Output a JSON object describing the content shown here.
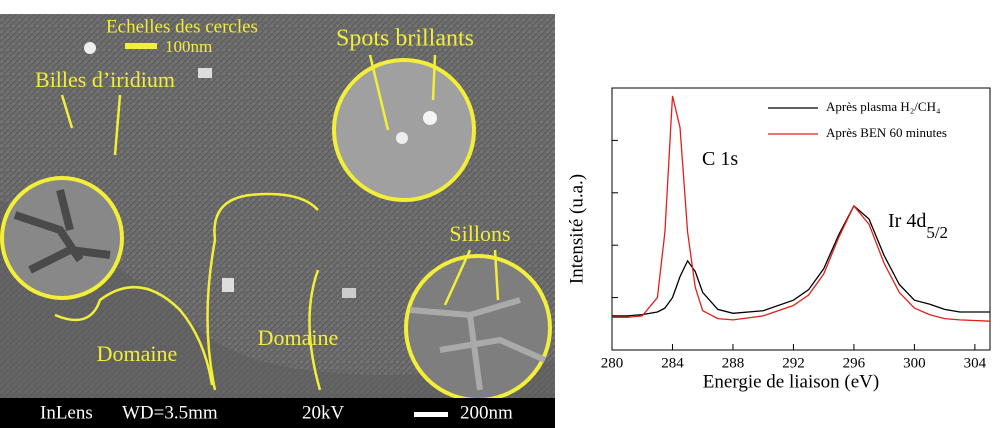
{
  "image_panel": {
    "annotations": [
      "Echelles des cercles",
      "100nm",
      "Spots brillants",
      "Billes d’iridium",
      "Domaine",
      "Domaine",
      "Sillons"
    ],
    "info_bar": [
      "InLens",
      "WD=3.5mm",
      "20kV",
      "200nm"
    ]
  },
  "chart_data": {
    "type": "line",
    "xlabel": "Energie de liaison (eV)",
    "ylabel": "Intensité (u.a.)",
    "x": [
      280,
      281,
      282,
      283,
      283.5,
      284,
      284.5,
      285,
      285.5,
      286,
      287,
      288,
      290,
      292,
      293,
      294,
      295,
      296,
      297,
      298,
      299,
      300,
      301,
      302,
      303,
      305
    ],
    "series": [
      {
        "name": "Après plasma H₂/CH₄",
        "color": "#000000",
        "values": [
          1.3,
          1.3,
          1.35,
          1.45,
          1.6,
          2.0,
          2.8,
          3.4,
          3.0,
          2.2,
          1.55,
          1.4,
          1.5,
          1.9,
          2.3,
          3.1,
          4.4,
          5.5,
          5.0,
          3.6,
          2.5,
          1.9,
          1.75,
          1.55,
          1.45,
          1.45
        ]
      },
      {
        "name": "Après BEN 60 minutes",
        "color": "#e0201c",
        "values": [
          1.25,
          1.25,
          1.3,
          2.0,
          4.5,
          9.7,
          8.5,
          4.5,
          2.4,
          1.5,
          1.2,
          1.15,
          1.3,
          1.7,
          2.1,
          2.9,
          4.3,
          5.5,
          4.8,
          3.3,
          2.2,
          1.6,
          1.35,
          1.2,
          1.15,
          1.1
        ]
      }
    ],
    "annotations": [
      {
        "text": "C 1s",
        "subscript": null
      },
      {
        "text": "Ir 4d",
        "subscript": "5/2"
      }
    ],
    "xlim": [
      280,
      305
    ],
    "xticks": [
      280,
      284,
      288,
      292,
      296,
      300,
      304
    ],
    "ylim": [
      0,
      10
    ],
    "yticks": [
      0,
      2,
      4,
      6,
      8,
      10
    ],
    "legend": "upper right"
  }
}
